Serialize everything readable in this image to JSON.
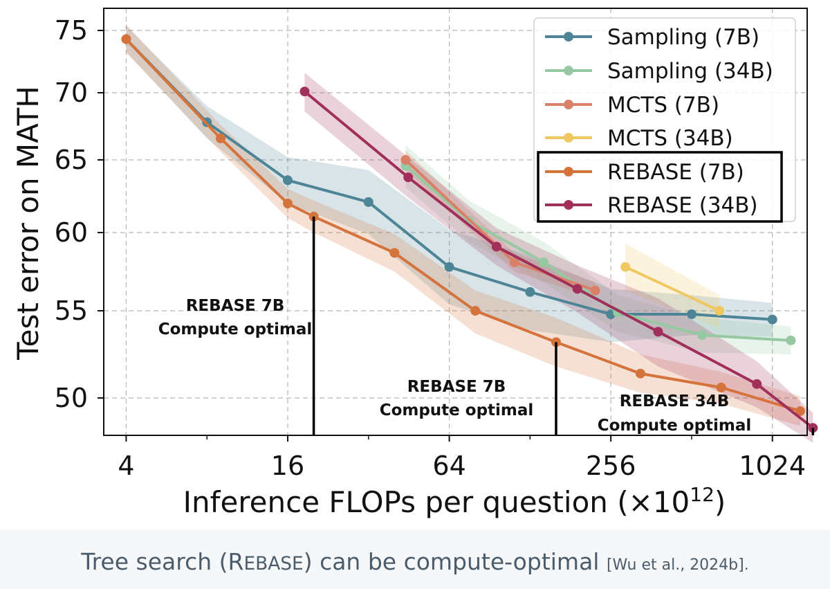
{
  "chart_data": {
    "type": "line",
    "xscale": "log2",
    "xlabel": "Inference FLOPs per question (×10",
    "xlabel_exponent": "12",
    "xlabel_suffix": ")",
    "ylabel": "Test error on MATH",
    "x_ticks": [
      4,
      16,
      64,
      256,
      1024
    ],
    "x_tick_labels": [
      "4",
      "16",
      "64",
      "256",
      "1024"
    ],
    "y_ticks": [
      50,
      55,
      60,
      65,
      70,
      75
    ],
    "y_tick_labels": [
      "50",
      "55",
      "60",
      "65",
      "70",
      "75"
    ],
    "xlim": [
      3.3,
      1380
    ],
    "ylim_top": 76.5,
    "grid": true,
    "legend_position": "top-right",
    "series": [
      {
        "name": "Sampling (7B)",
        "color": "#4d8597",
        "boxed": false,
        "x": [
          4,
          8,
          16,
          32,
          64,
          128,
          256,
          512,
          1024
        ],
        "y": [
          74.3,
          67.8,
          63.6,
          62.1,
          57.8,
          56.2,
          54.8,
          54.8,
          54.5
        ],
        "band": [
          1.0,
          1.2,
          1.6,
          2.2,
          2.4,
          2.3,
          1.6,
          1.2,
          1.0
        ]
      },
      {
        "name": "Sampling (34B)",
        "color": "#96c8a2",
        "boxed": false,
        "x": [
          44,
          76,
          144,
          272,
          560,
          1200
        ],
        "y": [
          64.6,
          60.8,
          58.1,
          54.9,
          53.6,
          53.3
        ],
        "band": [
          1.5,
          1.4,
          1.3,
          1.1,
          1.0,
          0.8
        ]
      },
      {
        "name": "MCTS (7B)",
        "color": "#da8068",
        "boxed": false,
        "x": [
          44,
          112,
          224
        ],
        "y": [
          65.0,
          58.1,
          56.3
        ],
        "band": [
          0.7,
          0.6,
          0.5
        ]
      },
      {
        "name": "MCTS (34B)",
        "color": "#efc862",
        "boxed": false,
        "x": [
          290,
          650
        ],
        "y": [
          57.8,
          55.0
        ],
        "band": [
          1.5,
          1.0
        ]
      },
      {
        "name": "REBASE (7B)",
        "color": "#d5733d",
        "boxed": true,
        "x": [
          4,
          9,
          16,
          20,
          40,
          80,
          160,
          330,
          660,
          1300
        ],
        "y": [
          74.3,
          66.6,
          62.0,
          61.1,
          58.7,
          55.0,
          53.2,
          51.4,
          50.6,
          49.3
        ],
        "band": [
          1.1,
          1.0,
          1.0,
          1.1,
          1.2,
          1.3,
          1.4,
          1.1,
          0.9,
          0.8
        ]
      },
      {
        "name": "REBASE (34B)",
        "color": "#a0305a",
        "boxed": true,
        "x": [
          18.5,
          45,
          96,
          192,
          384,
          896,
          1450
        ],
        "y": [
          70.1,
          63.8,
          59.1,
          56.4,
          53.8,
          50.8,
          48.4
        ],
        "band": [
          1.5,
          1.4,
          1.2,
          1.5,
          2.0,
          1.3,
          0.8
        ]
      }
    ],
    "annotations": [
      {
        "line1": "REBASE 7B",
        "line2": "Compute optimal",
        "x": 20,
        "y_top": 61.1
      },
      {
        "line1": "REBASE 7B",
        "line2": "Compute optimal",
        "x": 160,
        "y_top": 53.2
      },
      {
        "line1": "REBASE 34B",
        "line2": "Compute optimal",
        "x": 1450,
        "y_top": 48.4
      }
    ]
  },
  "caption": {
    "lead": "Tree search (",
    "method_initial": "R",
    "method_rest": "EBASE",
    "trail": ") can be compute-optimal",
    "citation": "[Wu et al., 2024b]."
  }
}
